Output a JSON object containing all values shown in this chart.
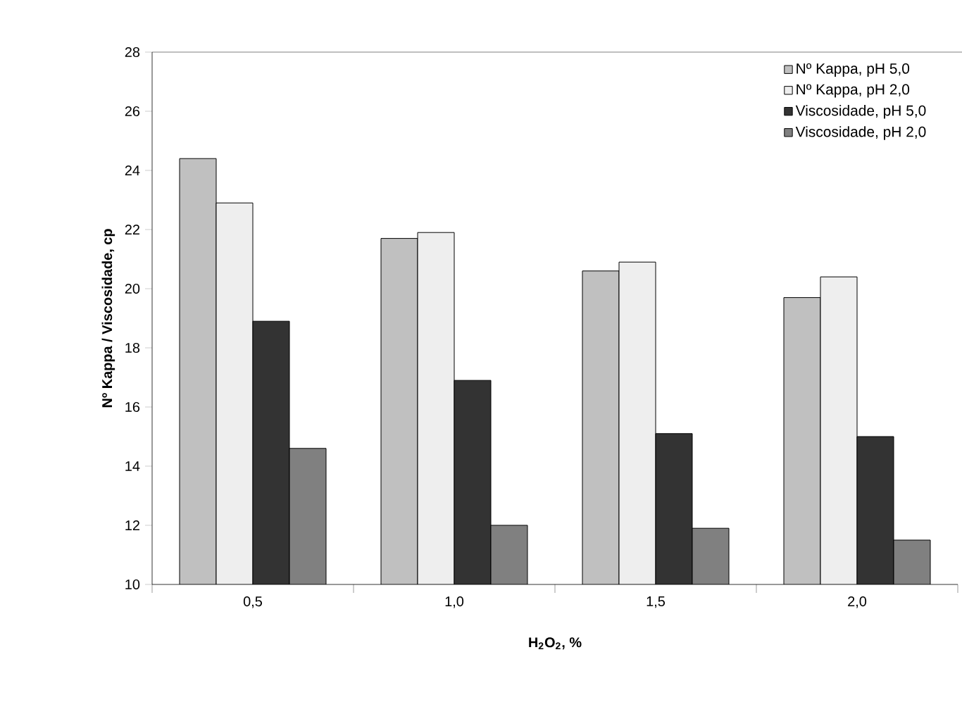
{
  "chart_data": {
    "type": "bar",
    "xlabel": "H$_{2}$O$_{2}$, %",
    "ylabel": "Nº Kappa / Viscosidade, cp",
    "categories": [
      "0,5",
      "1,0",
      "1,5",
      "2,0"
    ],
    "series": [
      {
        "name": "Nº Kappa, pH 5,0",
        "color": "#c0c0c0",
        "values": [
          24.4,
          21.7,
          20.6,
          19.7
        ]
      },
      {
        "name": "Nº Kappa, pH 2,0",
        "color": "#eeeeee",
        "values": [
          22.9,
          21.9,
          20.9,
          20.4
        ]
      },
      {
        "name": "Viscosidade, pH 5,0",
        "color": "#333333",
        "values": [
          18.9,
          16.9,
          15.1,
          15.0
        ]
      },
      {
        "name": "Viscosidade, pH 2,0",
        "color": "#808080",
        "values": [
          14.6,
          12.0,
          11.9,
          11.5
        ]
      }
    ],
    "ylim": [
      10,
      28
    ],
    "yticks": [
      10,
      12,
      14,
      16,
      18,
      20,
      22,
      24,
      26,
      28
    ],
    "grid": false,
    "legend": "top right"
  }
}
